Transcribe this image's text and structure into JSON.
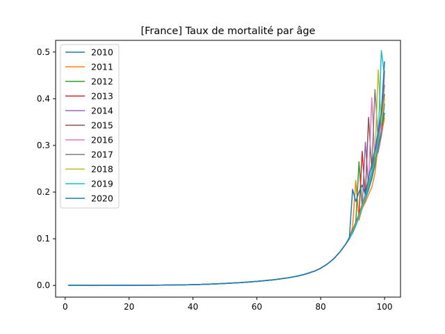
{
  "chart_data": {
    "type": "line",
    "title": "[France] Taux de mortalité par âge",
    "xlabel": "",
    "ylabel": "",
    "xlim": [
      -3,
      105
    ],
    "ylim": [
      -0.025,
      0.525
    ],
    "xticks": [
      0,
      20,
      40,
      60,
      80,
      100
    ],
    "yticks": [
      0.0,
      0.1,
      0.2,
      0.3,
      0.4,
      0.5
    ],
    "ytick_labels": [
      "0.0",
      "0.1",
      "0.2",
      "0.3",
      "0.4",
      "0.5"
    ],
    "grid": false,
    "legend_position": "top-left",
    "base_curve": {
      "x": [
        1,
        10,
        20,
        30,
        35,
        40,
        45,
        50,
        55,
        60,
        65,
        70,
        73,
        75,
        78,
        80,
        82,
        84,
        86,
        88,
        89,
        90,
        91,
        92,
        93,
        94,
        95,
        96,
        97,
        98,
        99,
        100
      ],
      "y": [
        0.0003,
        0.0001,
        0.0004,
        0.0007,
        0.0011,
        0.0017,
        0.0027,
        0.0042,
        0.0062,
        0.0087,
        0.0119,
        0.0165,
        0.0205,
        0.0238,
        0.0305,
        0.0368,
        0.0455,
        0.0565,
        0.0715,
        0.09,
        0.101,
        0.115,
        0.131,
        0.149,
        0.168,
        0.19,
        0.214,
        0.242,
        0.275,
        0.31,
        0.35,
        0.395
      ]
    },
    "series": [
      {
        "name": "2010",
        "color": "#1f77b4",
        "tail_x": [
          89,
          90,
          91,
          92,
          93,
          94,
          95,
          96,
          97,
          98,
          99,
          100
        ],
        "tail_y": [
          0.101,
          0.112,
          0.128,
          0.146,
          0.165,
          0.185,
          0.205,
          0.228,
          0.258,
          0.29,
          0.33,
          0.39
        ]
      },
      {
        "name": "2011",
        "color": "#ff7f0e",
        "tail_x": [
          89,
          90,
          91,
          92,
          93,
          94,
          95,
          96,
          97,
          98,
          99,
          100
        ],
        "tail_y": [
          0.1,
          0.125,
          0.225,
          0.14,
          0.165,
          0.178,
          0.195,
          0.21,
          0.24,
          0.3,
          0.32,
          0.36
        ]
      },
      {
        "name": "2012",
        "color": "#2ca02c",
        "tail_x": [
          89,
          90,
          91,
          92,
          93,
          94,
          95,
          96,
          97,
          98,
          99,
          100
        ],
        "tail_y": [
          0.102,
          0.118,
          0.135,
          0.265,
          0.168,
          0.188,
          0.21,
          0.235,
          0.265,
          0.3,
          0.33,
          0.37
        ]
      },
      {
        "name": "2013",
        "color": "#d62728",
        "tail_x": [
          89,
          90,
          91,
          92,
          93,
          94,
          95,
          96,
          97,
          98,
          99,
          100
        ],
        "tail_y": [
          0.101,
          0.116,
          0.132,
          0.15,
          0.287,
          0.19,
          0.215,
          0.24,
          0.275,
          0.31,
          0.35,
          0.4
        ]
      },
      {
        "name": "2014",
        "color": "#9467bd",
        "tail_x": [
          89,
          90,
          91,
          92,
          93,
          94,
          95,
          96,
          97,
          98,
          99,
          100
        ],
        "tail_y": [
          0.1,
          0.114,
          0.13,
          0.148,
          0.168,
          0.307,
          0.21,
          0.24,
          0.28,
          0.285,
          0.32,
          0.46
        ]
      },
      {
        "name": "2015",
        "color": "#8c564b",
        "tail_x": [
          89,
          90,
          91,
          92,
          93,
          94,
          95,
          96,
          97,
          98,
          99,
          100
        ],
        "tail_y": [
          0.103,
          0.118,
          0.135,
          0.153,
          0.173,
          0.195,
          0.36,
          0.248,
          0.28,
          0.315,
          0.36,
          0.41
        ]
      },
      {
        "name": "2016",
        "color": "#e377c2",
        "tail_x": [
          89,
          90,
          91,
          92,
          93,
          94,
          95,
          96,
          97,
          98,
          99,
          100
        ],
        "tail_y": [
          0.1,
          0.114,
          0.13,
          0.148,
          0.168,
          0.19,
          0.215,
          0.402,
          0.272,
          0.31,
          0.35,
          0.4
        ]
      },
      {
        "name": "2017",
        "color": "#7f7f7f",
        "tail_x": [
          89,
          90,
          91,
          92,
          93,
          94,
          95,
          96,
          97,
          98,
          99,
          100
        ],
        "tail_y": [
          0.102,
          0.116,
          0.133,
          0.151,
          0.171,
          0.193,
          0.218,
          0.245,
          0.42,
          0.315,
          0.36,
          0.43
        ]
      },
      {
        "name": "2018",
        "color": "#bcbd22",
        "tail_x": [
          89,
          90,
          91,
          92,
          93,
          94,
          95,
          96,
          97,
          98,
          99,
          100
        ],
        "tail_y": [
          0.1,
          0.114,
          0.13,
          0.148,
          0.168,
          0.19,
          0.215,
          0.24,
          0.27,
          0.462,
          0.35,
          0.4
        ]
      },
      {
        "name": "2019",
        "color": "#17becf",
        "tail_x": [
          89,
          90,
          91,
          92,
          93,
          94,
          95,
          96,
          97,
          98,
          99,
          100
        ],
        "tail_y": [
          0.1,
          0.113,
          0.129,
          0.147,
          0.166,
          0.188,
          0.212,
          0.238,
          0.268,
          0.305,
          0.503,
          0.45
        ]
      },
      {
        "name": "2020",
        "color": "#1f77b4",
        "tail_x": [
          89,
          90,
          91,
          92,
          93,
          94,
          95,
          96,
          97,
          98,
          99,
          100
        ],
        "tail_y": [
          0.103,
          0.206,
          0.18,
          0.2,
          0.215,
          0.195,
          0.23,
          0.26,
          0.29,
          0.33,
          0.37,
          0.48
        ]
      }
    ]
  }
}
